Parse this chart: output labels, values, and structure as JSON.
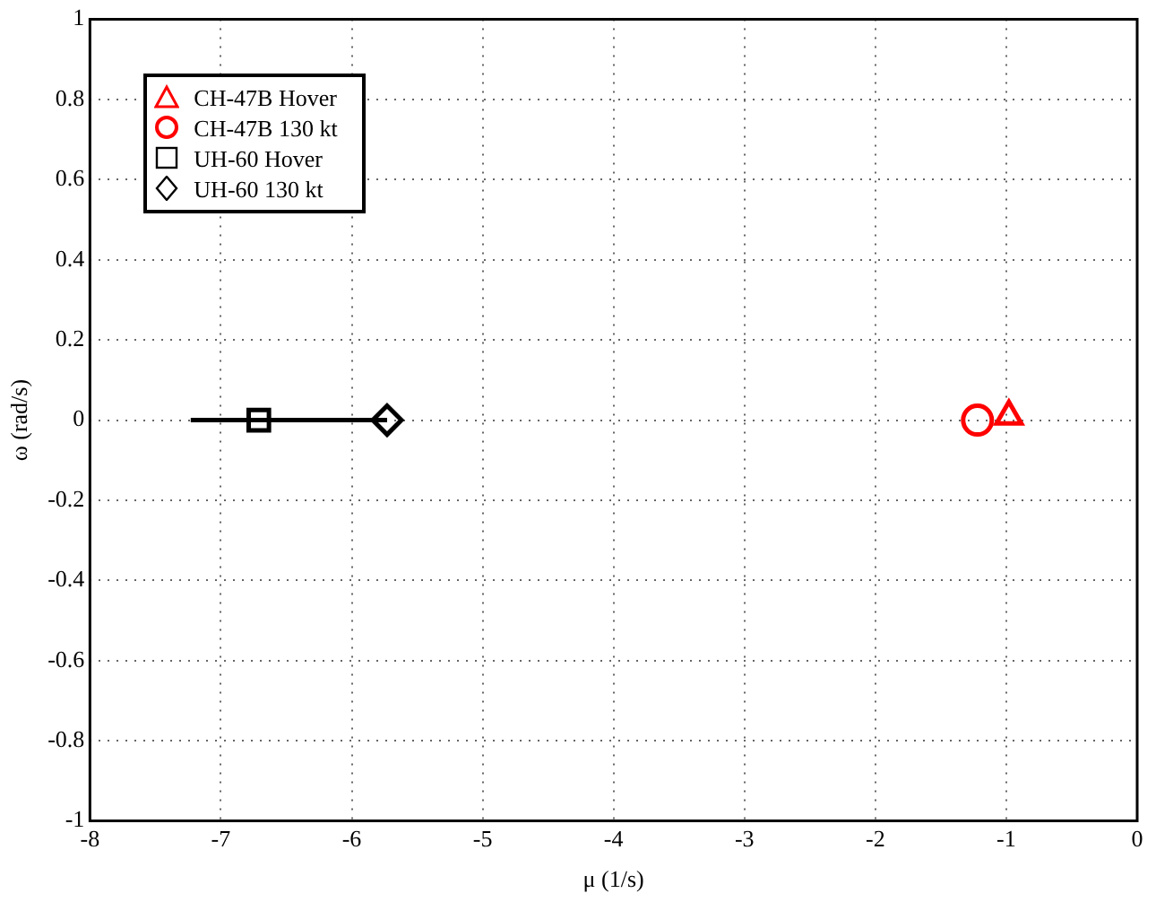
{
  "chart_data": {
    "type": "scatter",
    "xlabel": "μ (1/s)",
    "ylabel": "ω (rad/s)",
    "xlim": [
      -8,
      0
    ],
    "ylim": [
      -1,
      1
    ],
    "xticks": [
      -8,
      -7,
      -6,
      -5,
      -4,
      -3,
      -2,
      -1,
      0
    ],
    "yticks": [
      -1,
      -0.8,
      -0.6,
      -0.4,
      -0.2,
      0,
      0.2,
      0.4,
      0.6,
      0.8,
      1
    ],
    "grid": true,
    "legend": "top left",
    "series": [
      {
        "type": "line",
        "color": "#000000",
        "marker": "none",
        "x": [
          -7.23,
          -5.73
        ],
        "values": [
          0,
          0
        ]
      },
      {
        "name": "CH-47B Hover",
        "color": "#ff0000",
        "marker": "triangle",
        "x": [
          -0.98
        ],
        "values": [
          0.01
        ]
      },
      {
        "name": "CH-47B 130 kt",
        "color": "#ff0000",
        "marker": "circle",
        "x": [
          -1.22
        ],
        "values": [
          0
        ]
      },
      {
        "name": "UH-60 Hover",
        "color": "#000000",
        "marker": "square",
        "x": [
          -6.71
        ],
        "values": [
          0
        ]
      },
      {
        "name": "UH-60 130 kt",
        "color": "#000000",
        "marker": "diamond",
        "x": [
          -5.73
        ],
        "values": [
          0
        ]
      }
    ]
  }
}
